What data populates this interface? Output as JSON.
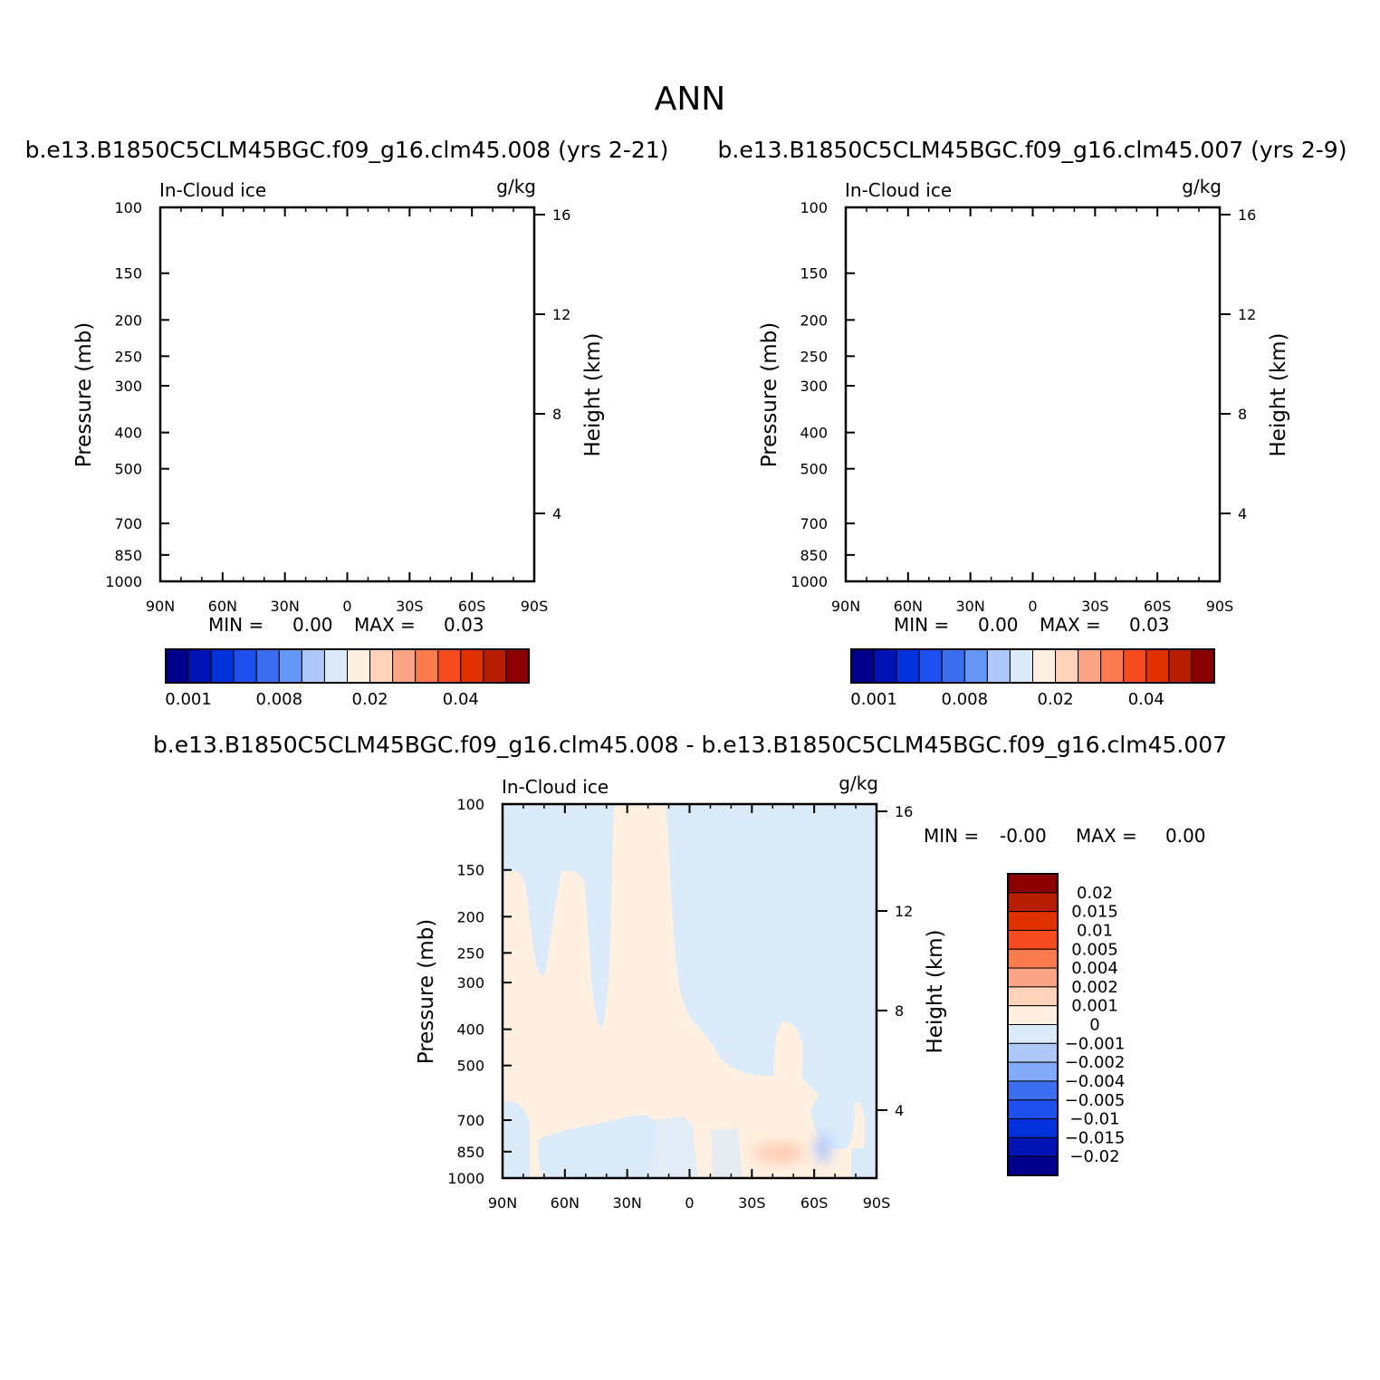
{
  "figure": {
    "season": "ANN"
  },
  "chart_data": [
    {
      "type": "contour",
      "title": "b.e13.B1850C5CLM45BGC.f09_g16.clm45.008 (yrs 2-21)",
      "left_label": "In-Cloud ice",
      "units": "g/kg",
      "ylabel": "Pressure (mb)",
      "ylabel_right": "Height (km)",
      "x_ticks": [
        "90N",
        "60N",
        "30N",
        "0",
        "30S",
        "60S",
        "90S"
      ],
      "y_ticks": [
        "100",
        "150",
        "200",
        "250",
        "300",
        "400",
        "500",
        "700",
        "850",
        "1000"
      ],
      "y_ticks_right": [
        "16",
        "12",
        "8",
        "4"
      ],
      "min_label": "MIN =",
      "min_value": "0.00",
      "max_label": "MAX =",
      "max_value": "0.03",
      "colorbar_labels": [
        "0.001",
        "0.008",
        "0.02",
        "0.04"
      ],
      "colors": [
        "#00008c",
        "#0014b4",
        "#0032dc",
        "#1e50f0",
        "#3c6ef0",
        "#6496f5",
        "#afc8fa",
        "#dcebfa",
        "#fff0e1",
        "#ffd2b9",
        "#fba586",
        "#fb7a4e",
        "#f54b1e",
        "#e03200",
        "#b71e00",
        "#8a0000"
      ]
    },
    {
      "type": "contour",
      "title": "b.e13.B1850C5CLM45BGC.f09_g16.clm45.007 (yrs 2-9)",
      "left_label": "In-Cloud ice",
      "units": "g/kg",
      "ylabel": "Pressure (mb)",
      "ylabel_right": "Height (km)",
      "x_ticks": [
        "90N",
        "60N",
        "30N",
        "0",
        "30S",
        "60S",
        "90S"
      ],
      "y_ticks": [
        "100",
        "150",
        "200",
        "250",
        "300",
        "400",
        "500",
        "700",
        "850",
        "1000"
      ],
      "y_ticks_right": [
        "16",
        "12",
        "8",
        "4"
      ],
      "min_label": "MIN =",
      "min_value": "0.00",
      "max_label": "MAX =",
      "max_value": "0.03",
      "colorbar_labels": [
        "0.001",
        "0.008",
        "0.02",
        "0.04"
      ],
      "colors": [
        "#00008c",
        "#0014b4",
        "#0032dc",
        "#1e50f0",
        "#3c6ef0",
        "#6496f5",
        "#afc8fa",
        "#dcebfa",
        "#fff0e1",
        "#ffd2b9",
        "#fba586",
        "#fb7a4e",
        "#f54b1e",
        "#e03200",
        "#b71e00",
        "#8a0000"
      ]
    },
    {
      "type": "contour",
      "title": "b.e13.B1850C5CLM45BGC.f09_g16.clm45.008 - b.e13.B1850C5CLM45BGC.f09_g16.clm45.007",
      "left_label": "In-Cloud ice",
      "units": "g/kg",
      "ylabel": "Pressure (mb)",
      "ylabel_right": "Height (km)",
      "x_ticks": [
        "90N",
        "60N",
        "30N",
        "0",
        "30S",
        "60S",
        "90S"
      ],
      "y_ticks": [
        "100",
        "150",
        "200",
        "250",
        "300",
        "400",
        "500",
        "700",
        "850",
        "1000"
      ],
      "y_ticks_right": [
        "16",
        "12",
        "8",
        "4"
      ],
      "min_label": "MIN =",
      "min_value": "-0.00",
      "max_label": "MAX =",
      "max_value": "0.00",
      "colorbar_labels": [
        "0.02",
        "0.015",
        "0.01",
        "0.005",
        "0.004",
        "0.002",
        "0.001",
        "0",
        "-0.001",
        "-0.002",
        "-0.004",
        "-0.005",
        "-0.01",
        "-0.015",
        "-0.02"
      ],
      "colors": [
        "#8a0000",
        "#b71e00",
        "#e03200",
        "#f54b1e",
        "#fb7a4e",
        "#fba586",
        "#ffd2b9",
        "#fff0e1",
        "#dcebfa",
        "#afc8fa",
        "#82aaf8",
        "#3c6ef0",
        "#1e50f0",
        "#0032dc",
        "#0014b4",
        "#00008c"
      ]
    }
  ]
}
